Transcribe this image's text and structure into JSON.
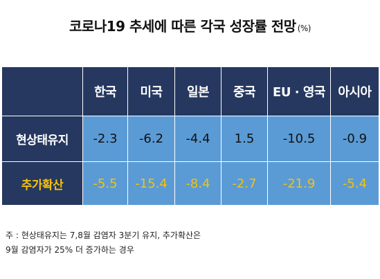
{
  "title": "코로나19 추세에 따른 각국 성장률 전망",
  "unit": "(%)",
  "colors": {
    "header_bg": "#263860",
    "cell_bg": "#5b9bd5",
    "accent_yellow": "#f5c20a"
  },
  "chart_data": {
    "type": "table",
    "title": "코로나19 추세에 따른 각국 성장률 전망",
    "unit": "(%)",
    "columns": [
      "한국",
      "미국",
      "일본",
      "중국",
      "EU · 영국",
      "아시아"
    ],
    "rows": [
      {
        "label": "현상태유지",
        "values": [
          "-2.3",
          "-6.2",
          "-4.4",
          "1.5",
          "-10.5",
          "-0.9"
        ]
      },
      {
        "label": "추가확산",
        "values": [
          "-5.5",
          "-15.4",
          "-8.4",
          "-2.7",
          "-21.9",
          "-5.4"
        ]
      }
    ]
  },
  "footnote": {
    "line1": "주 : 현상태유지는 7,8월 감염자 3분기 유지, 추가확산은",
    "line2": "9월 감염자가 25% 더 증가하는 경우"
  }
}
